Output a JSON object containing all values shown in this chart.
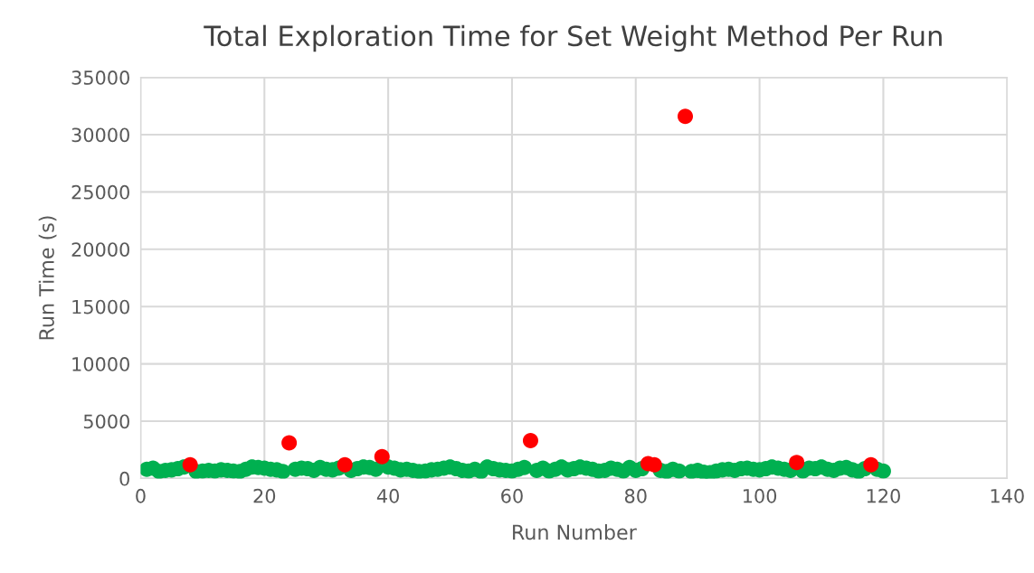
{
  "chart_data": {
    "type": "scatter",
    "title": "Total Exploration Time for Set Weight Method Per Run",
    "xlabel": "Run Number",
    "ylabel": "Run Time (s)",
    "xlim": [
      0,
      140
    ],
    "xticks": [
      0,
      20,
      40,
      60,
      80,
      100,
      120,
      140
    ],
    "ylim": [
      0,
      35000
    ],
    "yticks": [
      0,
      5000,
      10000,
      15000,
      20000,
      25000,
      30000,
      35000
    ],
    "grid": true,
    "legend": false,
    "marker": "circle",
    "series": [
      {
        "color": "#00b050",
        "x": [
          1,
          2,
          3,
          4,
          5,
          6,
          7,
          9,
          10,
          11,
          12,
          13,
          14,
          15,
          16,
          17,
          18,
          19,
          20,
          21,
          22,
          23,
          25,
          26,
          27,
          28,
          29,
          30,
          31,
          32,
          34,
          35,
          36,
          37,
          38,
          40,
          41,
          42,
          43,
          44,
          45,
          46,
          47,
          48,
          49,
          50,
          51,
          52,
          53,
          54,
          55,
          56,
          57,
          58,
          59,
          60,
          61,
          62,
          64,
          65,
          66,
          67,
          68,
          69,
          70,
          71,
          72,
          73,
          74,
          75,
          76,
          77,
          78,
          79,
          80,
          81,
          84,
          85,
          86,
          87,
          89,
          90,
          91,
          92,
          93,
          94,
          95,
          96,
          97,
          98,
          99,
          100,
          101,
          102,
          103,
          104,
          105,
          107,
          108,
          109,
          110,
          111,
          112,
          113,
          114,
          115,
          116,
          117,
          119,
          120
        ],
        "values": [
          800,
          900,
          600,
          700,
          750,
          850,
          1000,
          600,
          650,
          700,
          650,
          750,
          700,
          650,
          600,
          800,
          1000,
          950,
          900,
          800,
          750,
          600,
          800,
          900,
          850,
          700,
          950,
          800,
          750,
          900,
          700,
          850,
          1000,
          950,
          800,
          1000,
          900,
          750,
          800,
          700,
          600,
          650,
          750,
          800,
          900,
          1000,
          850,
          700,
          650,
          800,
          600,
          1000,
          850,
          750,
          700,
          650,
          800,
          950,
          700,
          900,
          650,
          800,
          1000,
          750,
          850,
          1000,
          900,
          800,
          650,
          700,
          900,
          800,
          650,
          950,
          700,
          850,
          700,
          600,
          800,
          650,
          600,
          700,
          550,
          500,
          650,
          750,
          800,
          700,
          850,
          900,
          800,
          750,
          850,
          1000,
          900,
          800,
          700,
          650,
          900,
          850,
          1000,
          800,
          700,
          900,
          950,
          750,
          600,
          850,
          800,
          650
        ]
      },
      {
        "color": "#ff0000",
        "x": [
          8,
          24,
          33,
          39,
          63,
          82,
          83,
          88,
          106,
          118
        ],
        "values": [
          1200,
          3100,
          1200,
          1900,
          3300,
          1300,
          1200,
          31600,
          1400,
          1200
        ]
      }
    ]
  }
}
